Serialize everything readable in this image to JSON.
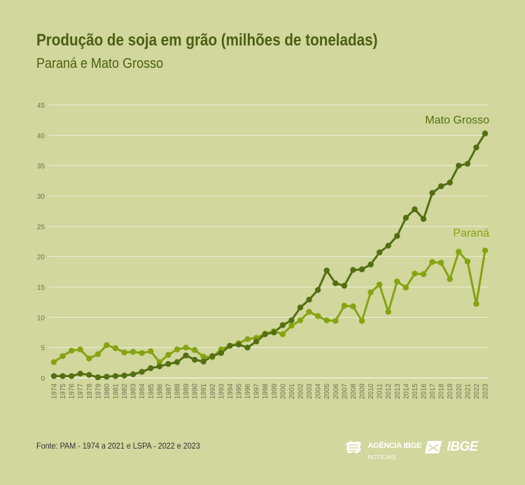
{
  "header": {
    "title": "Produção de soja em grão (milhões de toneladas)",
    "subtitle": "Paraná e Mato Grosso"
  },
  "footer": {
    "source": "Fonte: PAM - 1974 a 2021 e LSPA  -  2022 e 2023",
    "agencia_line1": "AGÊNCIA IBGE",
    "agencia_line2": "NOTÍCIAS",
    "ibge_wordmark": "IBGE"
  },
  "chart_data": {
    "type": "line",
    "title": "Produção de soja em grão (milhões de toneladas)",
    "subtitle": "Paraná e Mato Grosso",
    "xlabel": "",
    "ylabel": "",
    "ylim": [
      0,
      45
    ],
    "yticks": [
      0,
      5,
      10,
      15,
      20,
      25,
      30,
      35,
      40,
      45
    ],
    "grid": true,
    "legend": "inline-labels",
    "x": [
      "1974",
      "1975",
      "1976",
      "1977",
      "1978",
      "1979",
      "1980",
      "1981",
      "1982",
      "1983",
      "1984",
      "1985",
      "1986",
      "1987",
      "1988",
      "1989",
      "1990",
      "1991",
      "1992",
      "1993",
      "1994",
      "1995",
      "1996",
      "1997",
      "1998",
      "1999",
      "2000",
      "2001",
      "2002",
      "2003",
      "2004",
      "2005",
      "2006",
      "2007",
      "2008",
      "2009",
      "2010",
      "2011",
      "2012",
      "2013",
      "2014",
      "2015",
      "2016",
      "2017",
      "2018",
      "2019",
      "2020",
      "2021",
      "2022",
      "2023"
    ],
    "series": [
      {
        "name": "Mato Grosso",
        "color": "#546f12",
        "values": [
          0.3,
          0.3,
          0.3,
          0.7,
          0.5,
          0.1,
          0.2,
          0.3,
          0.4,
          0.6,
          1.0,
          1.6,
          1.9,
          2.3,
          2.6,
          3.7,
          3.0,
          2.7,
          3.6,
          4.1,
          5.3,
          5.5,
          5.0,
          6.0,
          7.2,
          7.5,
          8.7,
          9.5,
          11.6,
          12.9,
          14.5,
          17.7,
          15.6,
          15.2,
          17.8,
          17.9,
          18.7,
          20.7,
          21.8,
          23.4,
          26.4,
          27.8,
          26.2,
          30.5,
          31.6,
          32.2,
          35.0,
          35.3,
          38.0,
          40.3
        ]
      },
      {
        "name": "Paraná",
        "color": "#86a311",
        "values": [
          2.6,
          3.6,
          4.5,
          4.7,
          3.2,
          3.9,
          5.4,
          4.9,
          4.2,
          4.3,
          4.1,
          4.4,
          2.6,
          3.8,
          4.7,
          5.0,
          4.6,
          3.5,
          3.4,
          4.7,
          5.3,
          5.7,
          6.4,
          6.6,
          7.3,
          7.7,
          7.2,
          8.6,
          9.5,
          10.9,
          10.2,
          9.5,
          9.4,
          11.9,
          11.8,
          9.4,
          14.1,
          15.4,
          10.9,
          15.9,
          14.9,
          17.2,
          17.1,
          19.1,
          19.0,
          16.3,
          20.8,
          19.2,
          12.2,
          21.0
        ]
      }
    ]
  }
}
